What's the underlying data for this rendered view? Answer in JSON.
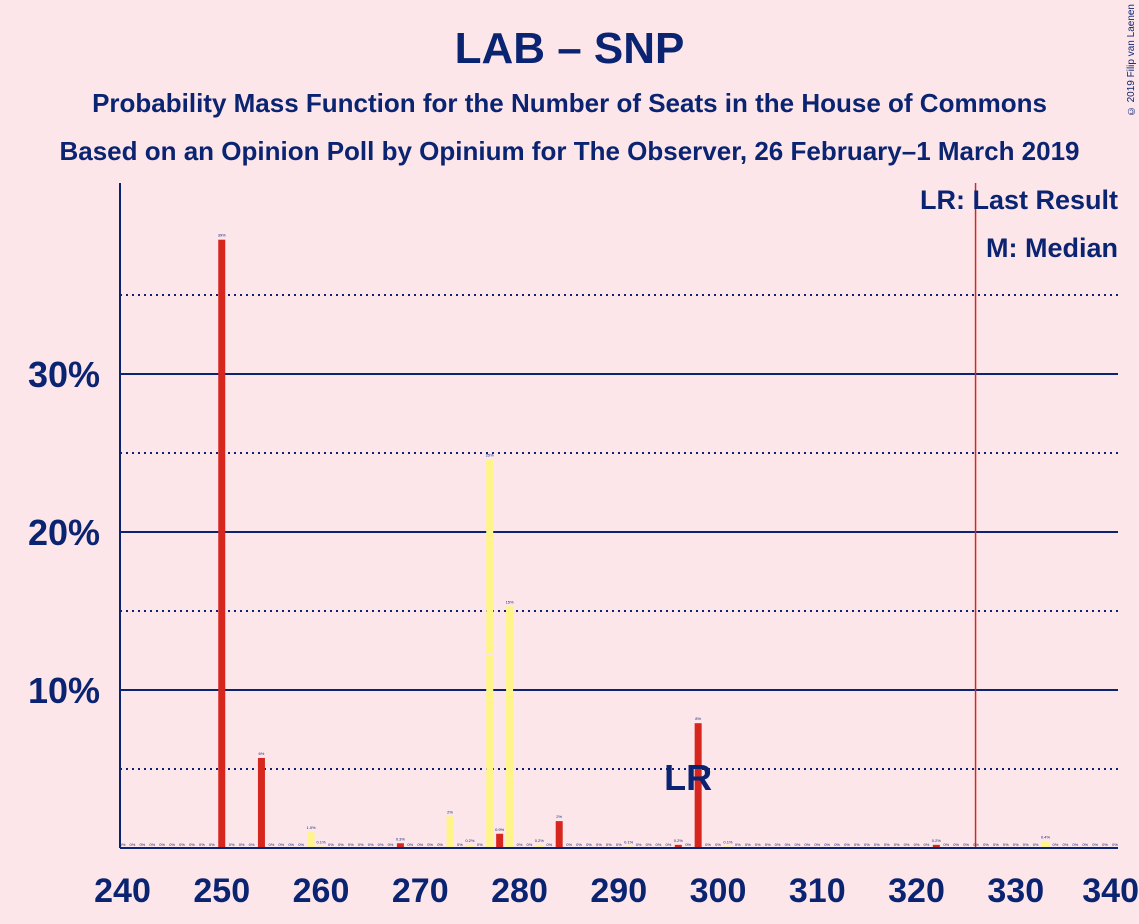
{
  "title": "LAB – SNP",
  "subtitle1": "Probability Mass Function for the Number of Seats in the House of Commons",
  "subtitle2": "Based on an Opinion Poll by Opinium for The Observer, 26 February–1 March 2019",
  "copyright": "© 2019 Filip van Laenen",
  "legend": {
    "lr": "LR: Last Result",
    "m": "M: Median"
  },
  "lr_marker_label": "LR",
  "colors": {
    "background": "#fde6ea",
    "text": "#0a2472",
    "bar_main": "#d7261e",
    "bar_alt": "#fff48a",
    "majority_line": "#d7261e"
  },
  "chart_data": {
    "type": "bar",
    "xlim": [
      240,
      340
    ],
    "ylim": [
      0,
      42
    ],
    "x_ticks": [
      240,
      250,
      260,
      270,
      280,
      290,
      300,
      310,
      320,
      330,
      340
    ],
    "x_tick_labels": [
      "240",
      "250",
      "260",
      "270",
      "280",
      "290",
      "300",
      "310",
      "320",
      "330",
      "340"
    ],
    "y_ticks_labeled": [
      10,
      20,
      30
    ],
    "y_tick_labels": [
      "10%",
      "20%",
      "30%"
    ],
    "y_dotted": [
      5,
      15,
      25,
      35
    ],
    "majority_line_x": 326,
    "last_result_x": 298,
    "median_x": 277,
    "bars": [
      {
        "x": 250,
        "value": 38.5,
        "label": "39%",
        "color": "main"
      },
      {
        "x": 254,
        "value": 5.7,
        "label": "6%",
        "color": "main"
      },
      {
        "x": 259,
        "value": 1.0,
        "label": "1.0%",
        "color": "alt"
      },
      {
        "x": 260,
        "value": 0.1,
        "label": "0.1%",
        "color": "alt"
      },
      {
        "x": 268,
        "value": 0.3,
        "label": "0.3%",
        "color": "main"
      },
      {
        "x": 273,
        "value": 2.0,
        "label": "2%",
        "color": "alt"
      },
      {
        "x": 275,
        "value": 0.2,
        "label": "0.2%",
        "color": "alt"
      },
      {
        "x": 277,
        "value": 24.6,
        "label": "25%",
        "color": "alt",
        "median": true
      },
      {
        "x": 278,
        "value": 0.9,
        "label": "0.9%",
        "color": "main"
      },
      {
        "x": 279,
        "value": 15.3,
        "label": "15%",
        "color": "alt"
      },
      {
        "x": 282,
        "value": 0.2,
        "label": "0.2%",
        "color": "alt"
      },
      {
        "x": 284,
        "value": 1.7,
        "label": "2%",
        "color": "main"
      },
      {
        "x": 291,
        "value": 0.1,
        "label": "0.1%",
        "color": "alt"
      },
      {
        "x": 296,
        "value": 0.2,
        "label": "0.2%",
        "color": "main"
      },
      {
        "x": 298,
        "value": 7.9,
        "label": "8%",
        "color": "main"
      },
      {
        "x": 301,
        "value": 0.1,
        "label": "0.1%",
        "color": "alt"
      },
      {
        "x": 322,
        "value": 0.2,
        "label": "0.2%",
        "color": "main"
      },
      {
        "x": 333,
        "value": 0.4,
        "label": "0.4%",
        "color": "alt"
      }
    ]
  }
}
